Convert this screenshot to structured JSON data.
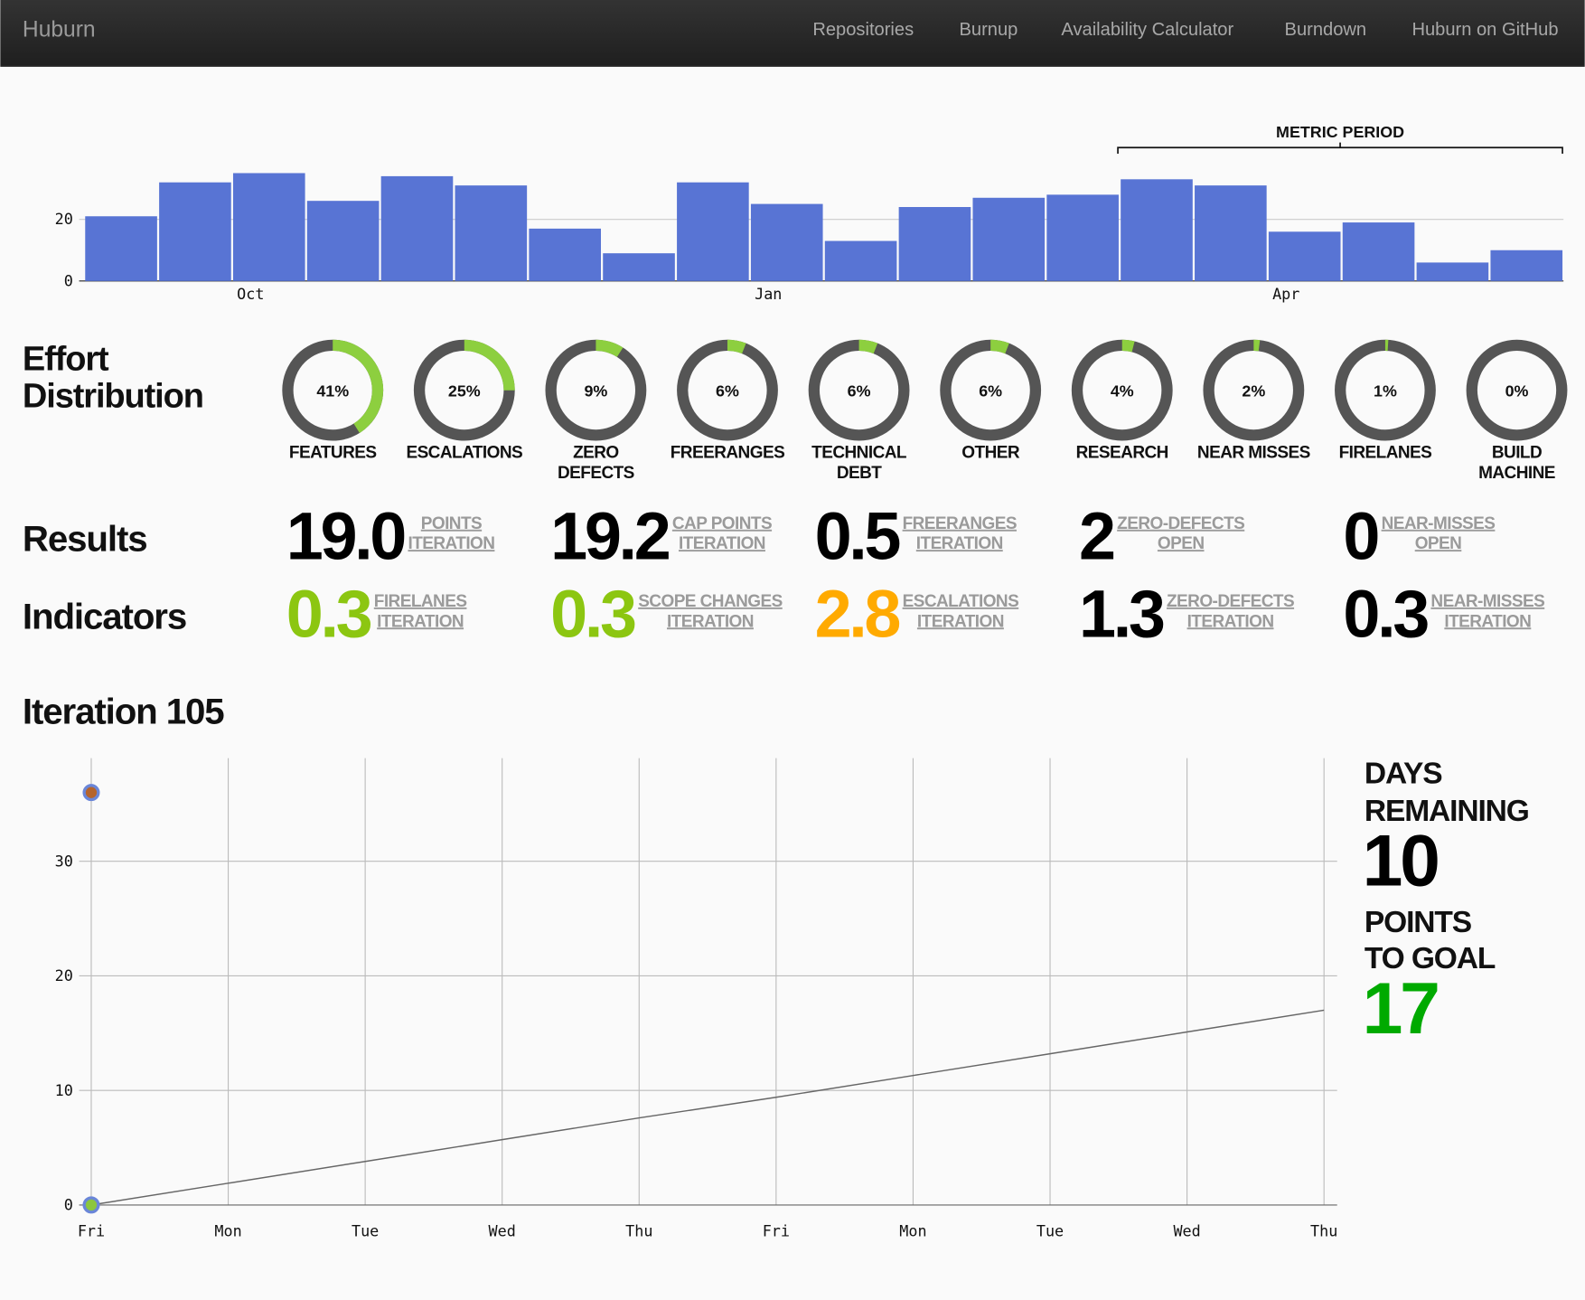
{
  "nav": {
    "brand": "Huburn",
    "links": [
      "Repositories",
      "Burnup",
      "Availability Calculator",
      "Burndown",
      "Huburn on GitHub"
    ]
  },
  "chart_data": [
    {
      "type": "bar",
      "color": "#5874d4",
      "categories": [
        null,
        null,
        "Oct",
        null,
        null,
        null,
        null,
        null,
        null,
        "Jan",
        null,
        null,
        null,
        null,
        null,
        null,
        "Apr",
        null,
        null,
        null
      ],
      "values": [
        21,
        32,
        35,
        26,
        34,
        31,
        17,
        9,
        32,
        25,
        13,
        24,
        27,
        28,
        33,
        31,
        16,
        19,
        6,
        10
      ],
      "ylim": [
        0,
        40
      ],
      "yticks": [
        0,
        20
      ],
      "grid": true,
      "annotation": "METRIC PERIOD"
    },
    {
      "type": "donut",
      "title": "Effort Distribution",
      "color": "#8dcf3f",
      "track_color": "#555555",
      "categories": [
        "FEATURES",
        "ESCALATIONS",
        "ZERO DEFECTS",
        "FREERANGES",
        "TECHNICAL DEBT",
        "OTHER",
        "RESEARCH",
        "NEAR MISSES",
        "FIRELANES",
        "BUILD MACHINE"
      ],
      "values": [
        41,
        25,
        9,
        6,
        6,
        6,
        4,
        2,
        1,
        0
      ],
      "value_labels": [
        "41%",
        "25%",
        "9%",
        "6%",
        "6%",
        "6%",
        "4%",
        "2%",
        "1%",
        "0%"
      ]
    },
    {
      "type": "line",
      "title": "Iteration 105",
      "categories": [
        "Fri",
        "Mon",
        "Tue",
        "Wed",
        "Thu",
        "Fri",
        "Mon",
        "Tue",
        "Wed",
        "Thu"
      ],
      "ylim": [
        0,
        39
      ],
      "yticks": [
        0,
        10,
        20,
        30
      ],
      "grid": true,
      "series": [
        {
          "mode": "line",
          "color": "#666666",
          "values": [
            0,
            1.9,
            3.8,
            5.7,
            7.6,
            9.4,
            11.3,
            13.2,
            15.1,
            17
          ]
        },
        {
          "mode": "points",
          "color": "#b5642c",
          "values": [
            36,
            null,
            null,
            null,
            null,
            null,
            null,
            null,
            null,
            null
          ]
        },
        {
          "mode": "points",
          "color": "#8cc63f",
          "values": [
            0,
            null,
            null,
            null,
            null,
            null,
            null,
            null,
            null,
            null
          ]
        }
      ]
    }
  ],
  "results": {
    "title": "Results",
    "items": [
      {
        "value": "19.0",
        "label": [
          "POINTS",
          "ITERATION"
        ],
        "color": "#000000"
      },
      {
        "value": "19.2",
        "label": [
          "CAP POINTS",
          "ITERATION"
        ],
        "color": "#000000"
      },
      {
        "value": "0.5",
        "label": [
          "FREERANGES",
          "ITERATION"
        ],
        "color": "#000000"
      },
      {
        "value": "2",
        "label": [
          "ZERO-DEFECTS",
          "OPEN"
        ],
        "color": "#000000"
      },
      {
        "value": "0",
        "label": [
          "NEAR-MISSES",
          "OPEN"
        ],
        "color": "#000000"
      }
    ]
  },
  "indicators": {
    "title": "Indicators",
    "items": [
      {
        "value": "0.3",
        "label": [
          "FIRELANES",
          "ITERATION"
        ],
        "color": "#8cc611"
      },
      {
        "value": "0.3",
        "label": [
          "SCOPE CHANGES",
          "ITERATION"
        ],
        "color": "#8cc611"
      },
      {
        "value": "2.8",
        "label": [
          "ESCALATIONS",
          "ITERATION"
        ],
        "color": "#ffaa00"
      },
      {
        "value": "1.3",
        "label": [
          "ZERO-DEFECTS",
          "ITERATION"
        ],
        "color": "#000000"
      },
      {
        "value": "0.3",
        "label": [
          "NEAR-MISSES",
          "ITERATION"
        ],
        "color": "#000000"
      }
    ]
  },
  "side": {
    "days_label": [
      "DAYS",
      "REMAINING"
    ],
    "days": "10",
    "days_color": "#000000",
    "points_label": [
      "POINTS",
      "TO GOAL"
    ],
    "points": "17",
    "points_color": "#00aa00"
  }
}
